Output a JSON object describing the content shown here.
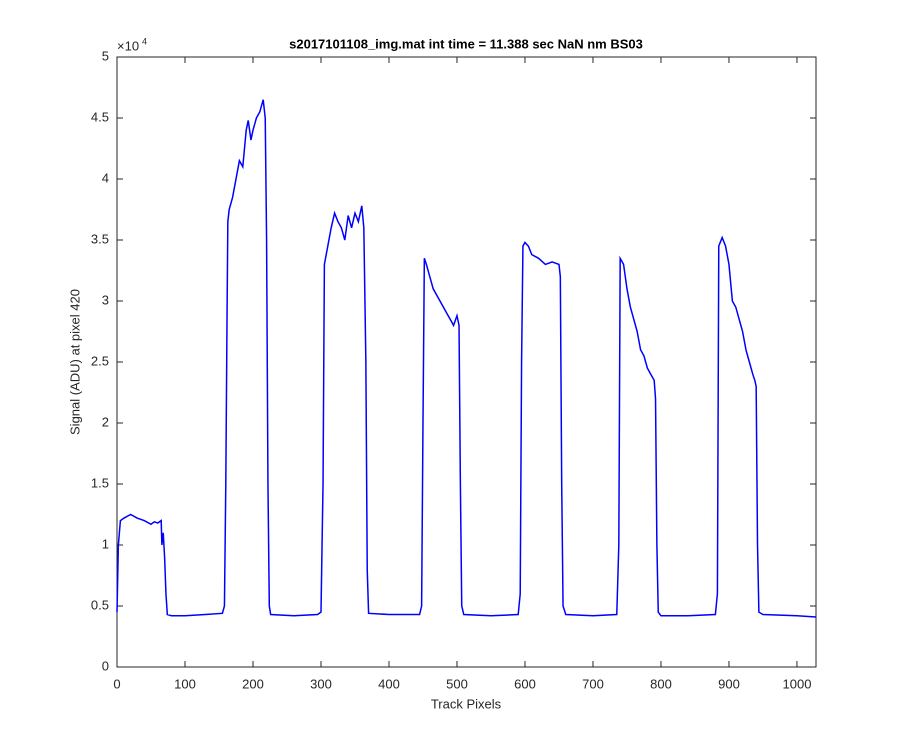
{
  "chart_data": {
    "type": "line",
    "title": "s2017101108_img.mat int time = 11.388 sec  NaN nm BS03",
    "x_label": "Track Pixels",
    "y_label": "Signal (ADU) at pixel 420",
    "y_multiplier": "×10",
    "y_multiplier_exponent": "4",
    "xlim": [
      0,
      1028
    ],
    "ylim": [
      0,
      5
    ],
    "xticks": [
      0,
      100,
      200,
      300,
      400,
      500,
      600,
      700,
      800,
      900,
      1000
    ],
    "yticks": [
      0,
      0.5,
      1,
      1.5,
      2,
      2.5,
      3,
      3.5,
      4,
      4.5,
      5
    ],
    "series": [
      {
        "color": "#0000ff",
        "x": [
          0,
          2,
          5,
          10,
          20,
          30,
          40,
          50,
          55,
          60,
          65,
          66,
          68,
          70,
          72,
          74,
          80,
          100,
          130,
          155,
          158,
          160,
          162,
          163,
          165,
          170,
          175,
          180,
          185,
          190,
          193,
          197,
          200,
          205,
          210,
          215,
          218,
          220,
          222,
          224,
          226,
          260,
          295,
          300,
          303,
          305,
          310,
          315,
          320,
          325,
          330,
          335,
          340,
          345,
          350,
          355,
          360,
          363,
          366,
          368,
          370,
          400,
          445,
          448,
          450,
          452,
          455,
          460,
          465,
          470,
          475,
          480,
          485,
          490,
          495,
          500,
          503,
          505,
          507,
          510,
          550,
          590,
          593,
          595,
          597,
          600,
          605,
          610,
          620,
          630,
          640,
          650,
          652,
          654,
          656,
          660,
          700,
          735,
          738,
          740,
          745,
          750,
          755,
          760,
          765,
          770,
          775,
          780,
          785,
          790,
          792,
          794,
          796,
          800,
          840,
          880,
          883,
          885,
          890,
          895,
          900,
          905,
          910,
          915,
          920,
          925,
          930,
          935,
          938,
          940,
          942,
          944,
          950,
          1000,
          1028
        ],
        "values": [
          0.45,
          1.0,
          1.2,
          1.22,
          1.25,
          1.22,
          1.2,
          1.17,
          1.19,
          1.18,
          1.2,
          1.0,
          1.1,
          0.9,
          0.6,
          0.43,
          0.42,
          0.42,
          0.43,
          0.44,
          0.5,
          1.5,
          3.0,
          3.65,
          3.75,
          3.85,
          4.0,
          4.15,
          4.1,
          4.4,
          4.48,
          4.32,
          4.4,
          4.5,
          4.55,
          4.65,
          4.5,
          3.5,
          1.5,
          0.5,
          0.43,
          0.42,
          0.43,
          0.45,
          1.5,
          3.3,
          3.45,
          3.6,
          3.72,
          3.65,
          3.6,
          3.5,
          3.7,
          3.6,
          3.72,
          3.65,
          3.78,
          3.6,
          2.5,
          0.8,
          0.44,
          0.43,
          0.43,
          0.5,
          2.0,
          3.35,
          3.3,
          3.2,
          3.1,
          3.05,
          3.0,
          2.95,
          2.9,
          2.85,
          2.8,
          2.88,
          2.8,
          1.5,
          0.5,
          0.43,
          0.42,
          0.43,
          0.6,
          2.5,
          3.45,
          3.48,
          3.45,
          3.38,
          3.35,
          3.3,
          3.32,
          3.3,
          3.2,
          1.5,
          0.5,
          0.43,
          0.42,
          0.43,
          1.0,
          3.35,
          3.3,
          3.1,
          2.95,
          2.85,
          2.75,
          2.6,
          2.55,
          2.45,
          2.4,
          2.35,
          2.2,
          1.0,
          0.45,
          0.42,
          0.42,
          0.43,
          0.6,
          3.45,
          3.52,
          3.45,
          3.3,
          3.0,
          2.95,
          2.85,
          2.75,
          2.6,
          2.5,
          2.4,
          2.35,
          2.3,
          1.0,
          0.45,
          0.43,
          0.42,
          0.41
        ]
      }
    ]
  }
}
